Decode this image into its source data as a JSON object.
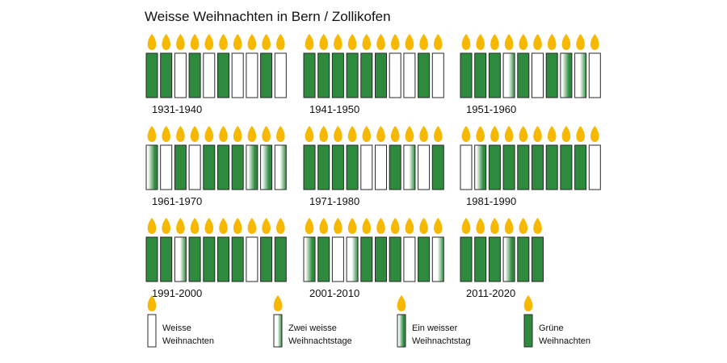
{
  "chart_data": {
    "type": "pictogram",
    "title": "Weisse Weihnachten in Bern / Zollikofen",
    "colors": {
      "green": "#2e8b3d",
      "flame": "#f6b800",
      "flame_core": "#ffd84a",
      "outline": "#2a2a2a"
    },
    "categories": {
      "W": "Weisse Weihnachten",
      "Z": "Zwei weisse Weihnachtstage",
      "E": "Ein weisser Weihnachtstag",
      "G": "Grüne Weihnachten"
    },
    "decades": [
      {
        "label": "1931-1940",
        "years": [
          "G",
          "G",
          "W",
          "G",
          "W",
          "G",
          "W",
          "W",
          "G",
          "W"
        ]
      },
      {
        "label": "1941-1950",
        "years": [
          "G",
          "G",
          "G",
          "G",
          "G",
          "G",
          "W",
          "W",
          "G",
          "W"
        ]
      },
      {
        "label": "1951-1960",
        "years": [
          "G",
          "G",
          "G",
          "Z",
          "G",
          "W",
          "G",
          "E",
          "Z",
          "W"
        ]
      },
      {
        "label": "1961-1970",
        "years": [
          "E",
          "W",
          "G",
          "W",
          "G",
          "G",
          "G",
          "E",
          "E",
          "Z"
        ]
      },
      {
        "label": "1971-1980",
        "years": [
          "G",
          "G",
          "G",
          "G",
          "W",
          "W",
          "G",
          "Z",
          "W",
          "G"
        ]
      },
      {
        "label": "1981-1990",
        "years": [
          "W",
          "E",
          "G",
          "G",
          "G",
          "G",
          "G",
          "G",
          "G",
          "W"
        ]
      },
      {
        "label": "1991-2000",
        "years": [
          "G",
          "G",
          "Z",
          "G",
          "G",
          "G",
          "G",
          "W",
          "G",
          "G"
        ]
      },
      {
        "label": "2001-2010",
        "years": [
          "E",
          "G",
          "W",
          "Z",
          "G",
          "G",
          "G",
          "W",
          "G",
          "Z"
        ]
      },
      {
        "label": "2011-2020",
        "years": [
          "G",
          "G",
          "G",
          "E",
          "G",
          "G"
        ]
      }
    ],
    "legend": [
      {
        "key": "W",
        "line1": "Weisse",
        "line2": "Weihnachten"
      },
      {
        "key": "Z",
        "line1": "Zwei weisse",
        "line2": "Weihnachtstage"
      },
      {
        "key": "E",
        "line1": "Ein weisser",
        "line2": "Weihnachtstag"
      },
      {
        "key": "G",
        "line1": "Grüne",
        "line2": "Weihnachten"
      }
    ]
  }
}
